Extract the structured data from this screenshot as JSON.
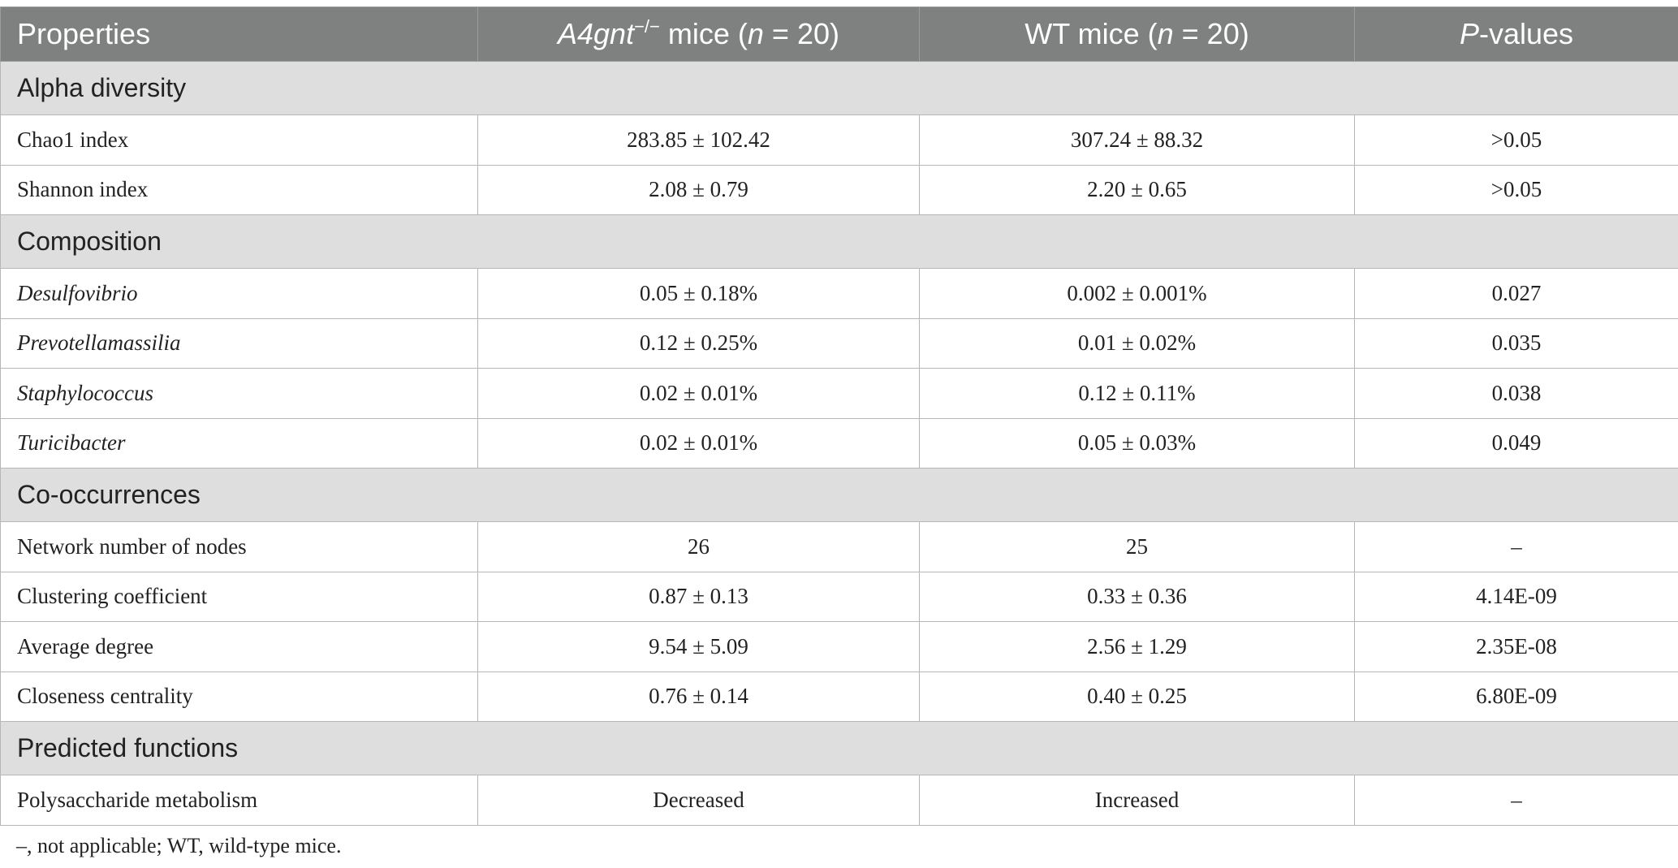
{
  "header": {
    "col0": "Properties",
    "col1_italic": "A4gnt",
    "col1_sup": "−/−",
    "col1_rest_a": " mice (",
    "col1_n": "n",
    "col1_rest_b": " = 20)",
    "col2_a": "WT mice (",
    "col2_n": "n",
    "col2_b": " = 20)",
    "col3_italic": "P",
    "col3_rest": "-values"
  },
  "sections": [
    {
      "title": "Alpha diversity",
      "rows": [
        {
          "label": "Chao1 index",
          "a4gnt": "283.85 ± 102.42",
          "wt": "307.24 ± 88.32",
          "p": ">0.05"
        },
        {
          "label": "Shannon index",
          "a4gnt": "2.08 ± 0.79",
          "wt": "2.20 ± 0.65",
          "p": ">0.05"
        }
      ]
    },
    {
      "title": "Composition",
      "rows": [
        {
          "label": "Desulfovibrio",
          "a4gnt": "0.05 ± 0.18%",
          "wt": "0.002 ± 0.001%",
          "p": "0.027"
        },
        {
          "label": "Prevotellamassilia",
          "a4gnt": "0.12 ± 0.25%",
          "wt": "0.01 ± 0.02%",
          "p": "0.035"
        },
        {
          "label": "Staphylococcus",
          "a4gnt": "0.02 ± 0.01%",
          "wt": "0.12 ± 0.11%",
          "p": "0.038"
        },
        {
          "label": "Turicibacter",
          "a4gnt": "0.02 ± 0.01%",
          "wt": "0.05 ± 0.03%",
          "p": "0.049"
        }
      ]
    },
    {
      "title": "Co-occurrences",
      "rows": [
        {
          "label": "Network number of nodes",
          "a4gnt": "26",
          "wt": "25",
          "p": "–"
        },
        {
          "label": "Clustering coefficient",
          "a4gnt": "0.87 ± 0.13",
          "wt": "0.33 ± 0.36",
          "p": "4.14E-09"
        },
        {
          "label": "Average degree",
          "a4gnt": "9.54 ± 5.09",
          "wt": "2.56 ± 1.29",
          "p": "2.35E-08"
        },
        {
          "label": "Closeness centrality",
          "a4gnt": "0.76 ± 0.14",
          "wt": "0.40 ± 0.25",
          "p": "6.80E-09"
        }
      ]
    },
    {
      "title": "Predicted functions",
      "rows": [
        {
          "label": "Polysaccharide metabolism",
          "a4gnt": "Decreased",
          "wt": "Increased",
          "p": "–"
        }
      ]
    }
  ],
  "footnote": "–, not applicable; WT, wild-type mice."
}
